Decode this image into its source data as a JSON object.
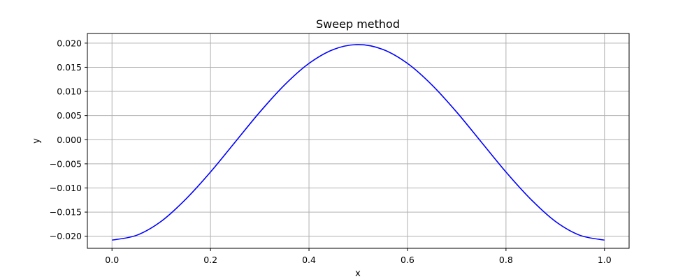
{
  "chart_data": {
    "type": "line",
    "title": "Sweep method",
    "xlabel": "x",
    "ylabel": "y",
    "xlim": [
      -0.05,
      1.05
    ],
    "ylim": [
      -0.0225,
      0.022
    ],
    "xticks": [
      0.0,
      0.2,
      0.4,
      0.6,
      0.8,
      1.0
    ],
    "xtick_labels": [
      "0.0",
      "0.2",
      "0.4",
      "0.6",
      "0.8",
      "1.0"
    ],
    "yticks": [
      -0.02,
      -0.015,
      -0.01,
      -0.005,
      0.0,
      0.005,
      0.01,
      0.015,
      0.02
    ],
    "ytick_labels": [
      "−0.020",
      "−0.015",
      "−0.010",
      "−0.005",
      "0.000",
      "0.005",
      "0.010",
      "0.015",
      "0.020"
    ],
    "grid": true,
    "series": [
      {
        "color": "#0000ff",
        "x": [
          0.0,
          0.05,
          0.1,
          0.15,
          0.2,
          0.25,
          0.3,
          0.35,
          0.4,
          0.45,
          0.5,
          0.55,
          0.6,
          0.65,
          0.7,
          0.75,
          0.8,
          0.85,
          0.9,
          0.95,
          1.0
        ],
        "y": [
          -0.0208,
          -0.0198,
          -0.0169,
          -0.0123,
          -0.0067,
          -0.0005,
          0.0057,
          0.0113,
          0.0158,
          0.0187,
          0.0197,
          0.0187,
          0.0158,
          0.0113,
          0.0057,
          -0.0005,
          -0.0067,
          -0.0123,
          -0.0169,
          -0.0198,
          -0.0208
        ]
      }
    ]
  }
}
